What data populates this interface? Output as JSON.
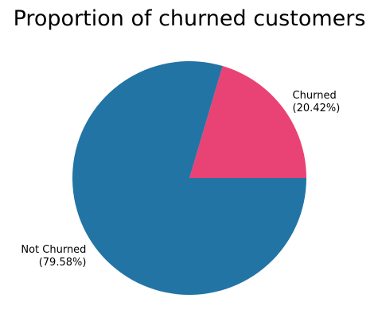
{
  "chart_data": {
    "type": "pie",
    "title": "Proportion of churned customers",
    "slices": [
      {
        "label": "Churned",
        "percent_label": "(20.42%)",
        "value": 20.42,
        "color": "#e84374"
      },
      {
        "label": "Not Churned",
        "percent_label": "(79.58%)",
        "value": 79.58,
        "color": "#2274a5"
      }
    ],
    "start_angle_deg": 0,
    "direction": "counterclockwise"
  }
}
